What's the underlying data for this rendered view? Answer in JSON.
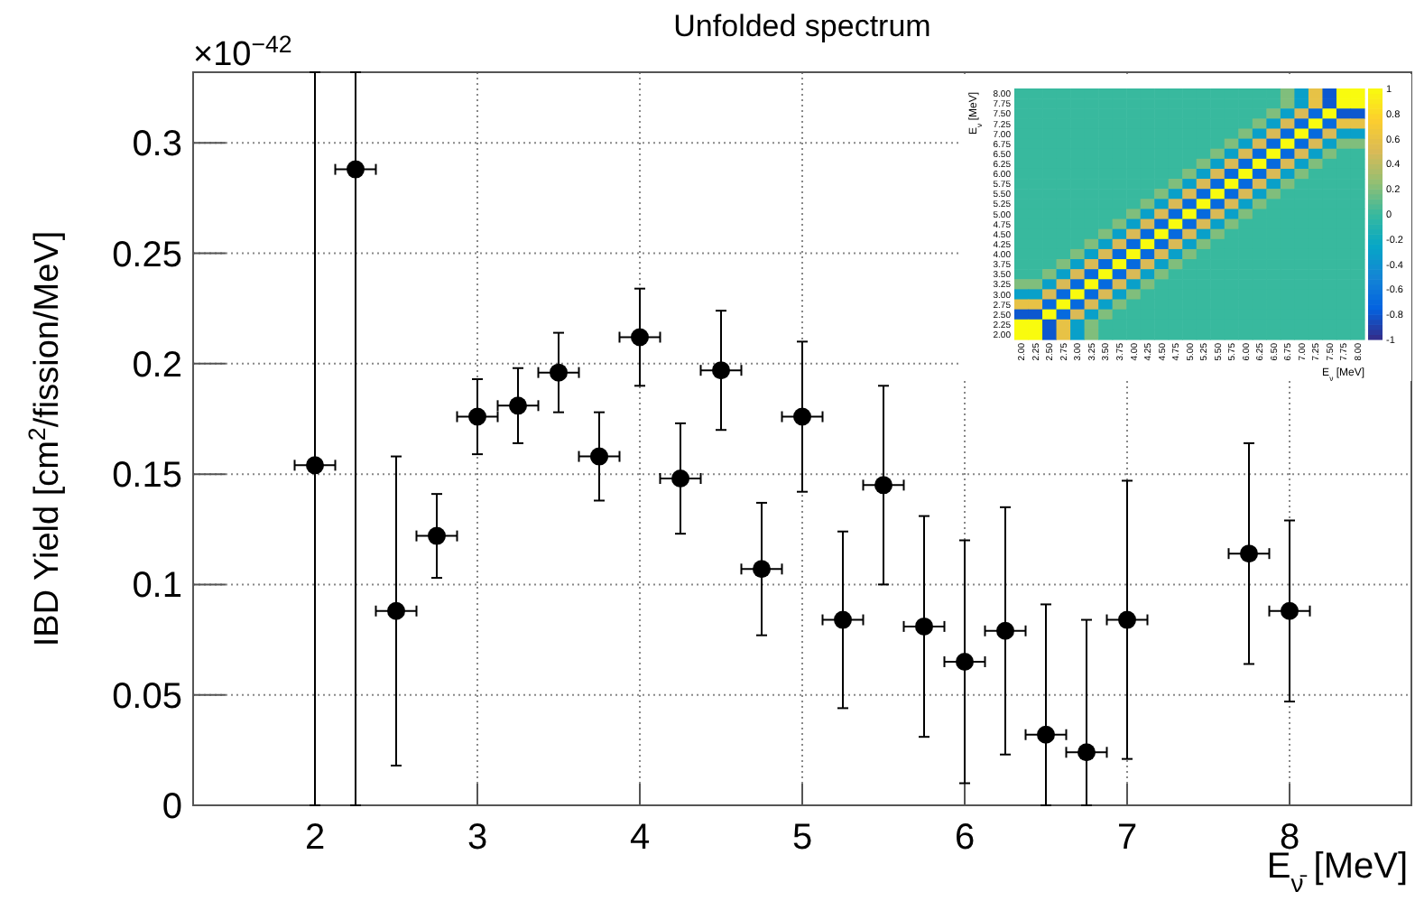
{
  "chart_data": [
    {
      "type": "scatter",
      "title": "Unfolded spectrum",
      "xlabel": "E$_{ν̄}$ [MeV]",
      "ylabel": "IBD Yield [cm$^{2}$/fission/MeV]",
      "annotations": [
        "×10$^{−42}$"
      ],
      "x": [
        2,
        2.25,
        2.5,
        2.75,
        3,
        3.25,
        3.5,
        3.75,
        4,
        4.25,
        4.5,
        4.75,
        5,
        5.25,
        5.5,
        5.75,
        6,
        6.25,
        6.5,
        6.75,
        7,
        7.75,
        8
      ],
      "series": [
        {
          "color": "#000000",
          "values": [
            0.154,
            0.288,
            0.088,
            0.122,
            0.176,
            0.181,
            0.196,
            0.158,
            0.212,
            0.148,
            0.197,
            0.107,
            0.176,
            0.084,
            0.145,
            0.081,
            0.065,
            0.079,
            0.032,
            0.024,
            0.084,
            0.114,
            0.088
          ],
          "errors": [
            [
              0,
              0.332
            ],
            [
              0,
              0.332
            ],
            0.07,
            0.019,
            0.017,
            0.017,
            0.018,
            0.02,
            0.022,
            0.025,
            0.027,
            0.03,
            0.034,
            0.04,
            0.045,
            0.05,
            0.055,
            0.056,
            [
              0,
              0.091
            ],
            [
              0,
              0.084
            ],
            0.063,
            0.05,
            0.041
          ],
          "xerrors": [
            0.125,
            0.125,
            0.125,
            0.125,
            0.125,
            0.125,
            0.125,
            0.125,
            0.125,
            0.125,
            0.125,
            0.125,
            0.125,
            0.125,
            0.125,
            0.125,
            0.125,
            0.125,
            0.125,
            0.125,
            0.125,
            0.125,
            0.125
          ]
        }
      ],
      "xlim": [
        1.25,
        8.75
      ],
      "xticks": [
        2,
        3,
        4,
        5,
        6,
        7,
        8
      ],
      "ylim": [
        0,
        0.332
      ],
      "yticks": [
        0,
        0.05,
        0.1,
        0.15,
        0.2,
        0.25,
        0.3
      ],
      "grid": true,
      "marker": "circle"
    },
    {
      "type": "heatmap",
      "xlabel": "E$_{ν}$ [MeV]",
      "ylabel": "E$_{ν}$ [MeV]",
      "categories": [
        "2.00",
        "2.25",
        "2.50",
        "2.75",
        "3.00",
        "3.25",
        "3.50",
        "3.75",
        "4.00",
        "4.25",
        "4.50",
        "4.75",
        "5.00",
        "5.25",
        "5.50",
        "5.75",
        "6.00",
        "6.25",
        "6.50",
        "6.75",
        "7.00",
        "7.25",
        "7.50",
        "7.75",
        "8.00"
      ],
      "y_categories": [
        "8.00",
        "7.75",
        "7.50",
        "7.25",
        "7.00",
        "6.75",
        "6.50",
        "6.25",
        "6.00",
        "5.75",
        "5.50",
        "5.25",
        "5.00",
        "4.75",
        "4.50",
        "4.25",
        "4.00",
        "3.75",
        "3.50",
        "3.25",
        "3.00",
        "2.75",
        "2.50",
        "2.25",
        "2.00"
      ],
      "cells": [
        [
          0,
          0,
          0,
          0,
          0,
          0,
          0,
          0,
          0,
          0,
          0,
          0,
          0,
          0,
          0,
          0,
          0,
          0,
          0,
          0.2,
          -0.3,
          0.6,
          -0.8,
          1,
          1
        ],
        [
          0,
          0,
          0,
          0,
          0,
          0,
          0,
          0,
          0,
          0,
          0,
          0,
          0,
          0,
          0,
          0,
          0,
          0,
          0,
          0.2,
          -0.3,
          0.6,
          -0.8,
          1,
          1
        ],
        [
          0,
          0,
          0,
          0,
          0,
          0,
          0,
          0,
          0,
          0,
          0,
          0,
          0,
          0,
          0,
          0,
          0,
          0,
          0.2,
          -0.3,
          0.5,
          -0.7,
          1,
          -0.8,
          -0.8
        ],
        [
          0,
          0,
          0,
          0,
          0,
          0,
          0,
          0,
          0,
          0,
          0,
          0,
          0,
          0,
          0,
          0,
          0,
          0.2,
          -0.3,
          0.5,
          -0.7,
          1,
          -0.7,
          0.6,
          0.6
        ],
        [
          0,
          0,
          0,
          0,
          0,
          0,
          0,
          0,
          0,
          0,
          0,
          0,
          0,
          0,
          0,
          0,
          0.2,
          -0.3,
          0.5,
          -0.7,
          1,
          -0.7,
          0.5,
          -0.3,
          -0.3
        ],
        [
          0,
          0,
          0,
          0,
          0,
          0,
          0,
          0,
          0,
          0,
          0,
          0,
          0,
          0,
          0,
          0.2,
          -0.3,
          0.5,
          -0.7,
          1,
          -0.7,
          0.5,
          -0.3,
          0.2,
          0.2
        ],
        [
          0,
          0,
          0,
          0,
          0,
          0,
          0,
          0,
          0,
          0,
          0,
          0,
          0,
          0,
          0.2,
          -0.3,
          0.5,
          -0.7,
          1,
          -0.7,
          0.5,
          -0.3,
          0.2,
          0,
          0
        ],
        [
          0,
          0,
          0,
          0,
          0,
          0,
          0,
          0,
          0,
          0,
          0,
          0,
          0,
          0.2,
          -0.3,
          0.5,
          -0.7,
          1,
          -0.7,
          0.5,
          -0.3,
          0.2,
          0,
          0,
          0
        ],
        [
          0,
          0,
          0,
          0,
          0,
          0,
          0,
          0,
          0,
          0,
          0,
          0,
          0.2,
          -0.3,
          0.5,
          -0.7,
          1,
          -0.7,
          0.5,
          -0.3,
          0.2,
          0,
          0,
          0,
          0
        ],
        [
          0,
          0,
          0,
          0,
          0,
          0,
          0,
          0,
          0,
          0,
          0,
          0.2,
          -0.3,
          0.5,
          -0.7,
          1,
          -0.7,
          0.5,
          -0.3,
          0.2,
          0,
          0,
          0,
          0,
          0
        ],
        [
          0,
          0,
          0,
          0,
          0,
          0,
          0,
          0,
          0,
          0,
          0.2,
          -0.3,
          0.5,
          -0.7,
          1,
          -0.7,
          0.5,
          -0.3,
          0.2,
          0,
          0,
          0,
          0,
          0,
          0
        ],
        [
          0,
          0,
          0,
          0,
          0,
          0,
          0,
          0,
          0,
          0.2,
          -0.3,
          0.5,
          -0.7,
          1,
          -0.7,
          0.5,
          -0.3,
          0.2,
          0,
          0,
          0,
          0,
          0,
          0,
          0
        ],
        [
          0,
          0,
          0,
          0,
          0,
          0,
          0,
          0,
          0.2,
          -0.3,
          0.5,
          -0.7,
          1,
          -0.7,
          0.5,
          -0.3,
          0.2,
          0,
          0,
          0,
          0,
          0,
          0,
          0,
          0
        ],
        [
          0,
          0,
          0,
          0,
          0,
          0,
          0,
          0.2,
          -0.3,
          0.5,
          -0.7,
          1,
          -0.7,
          0.5,
          -0.3,
          0.2,
          0,
          0,
          0,
          0,
          0,
          0,
          0,
          0,
          0
        ],
        [
          0,
          0,
          0,
          0,
          0,
          0,
          0.2,
          -0.3,
          0.5,
          -0.7,
          1,
          -0.7,
          0.5,
          -0.3,
          0.2,
          0,
          0,
          0,
          0,
          0,
          0,
          0,
          0,
          0,
          0
        ],
        [
          0,
          0,
          0,
          0,
          0,
          0.2,
          -0.3,
          0.5,
          -0.7,
          1,
          -0.7,
          0.5,
          -0.3,
          0.2,
          0,
          0,
          0,
          0,
          0,
          0,
          0,
          0,
          0,
          0,
          0
        ],
        [
          0,
          0,
          0,
          0,
          0.2,
          -0.3,
          0.5,
          -0.7,
          1,
          -0.7,
          0.5,
          -0.3,
          0.2,
          0,
          0,
          0,
          0,
          0,
          0,
          0,
          0,
          0,
          0,
          0,
          0
        ],
        [
          0,
          0,
          0,
          0.2,
          -0.3,
          0.5,
          -0.7,
          1,
          -0.7,
          0.5,
          -0.3,
          0.2,
          0,
          0,
          0,
          0,
          0,
          0,
          0,
          0,
          0,
          0,
          0,
          0,
          0
        ],
        [
          0,
          0,
          0.2,
          -0.3,
          0.5,
          -0.7,
          1,
          -0.7,
          0.5,
          -0.3,
          0.2,
          0,
          0,
          0,
          0,
          0,
          0,
          0,
          0,
          0,
          0,
          0,
          0,
          0,
          0
        ],
        [
          0.2,
          0.2,
          -0.3,
          0.5,
          -0.7,
          1,
          -0.7,
          0.5,
          -0.3,
          0.2,
          0,
          0,
          0,
          0,
          0,
          0,
          0,
          0,
          0,
          0,
          0,
          0,
          0,
          0,
          0
        ],
        [
          -0.3,
          -0.3,
          0.5,
          -0.7,
          1,
          -0.7,
          0.5,
          -0.3,
          0.2,
          0,
          0,
          0,
          0,
          0,
          0,
          0,
          0,
          0,
          0,
          0,
          0,
          0,
          0,
          0,
          0
        ],
        [
          0.6,
          0.6,
          -0.7,
          1,
          -0.7,
          0.5,
          -0.3,
          0.2,
          0,
          0,
          0,
          0,
          0,
          0,
          0,
          0,
          0,
          0,
          0,
          0,
          0,
          0,
          0,
          0,
          0
        ],
        [
          -0.8,
          -0.8,
          1,
          -0.7,
          0.5,
          -0.3,
          0.2,
          0,
          0,
          0,
          0,
          0,
          0,
          0,
          0,
          0,
          0,
          0,
          0,
          0,
          0,
          0,
          0,
          0,
          0
        ],
        [
          1,
          1,
          -0.8,
          0.6,
          -0.3,
          0.2,
          0,
          0,
          0,
          0,
          0,
          0,
          0,
          0,
          0,
          0,
          0,
          0,
          0,
          0,
          0,
          0,
          0,
          0,
          0
        ],
        [
          1,
          1,
          -0.8,
          0.6,
          -0.3,
          0.2,
          0,
          0,
          0,
          0,
          0,
          0,
          0,
          0,
          0,
          0,
          0,
          0,
          0,
          0,
          0,
          0,
          0,
          0,
          0
        ]
      ],
      "clim": [
        -1,
        1
      ],
      "cticks": [
        -1,
        -0.8,
        -0.6,
        -0.4,
        -0.2,
        0,
        0.2,
        0.4,
        0.6,
        0.8,
        1
      ]
    }
  ]
}
